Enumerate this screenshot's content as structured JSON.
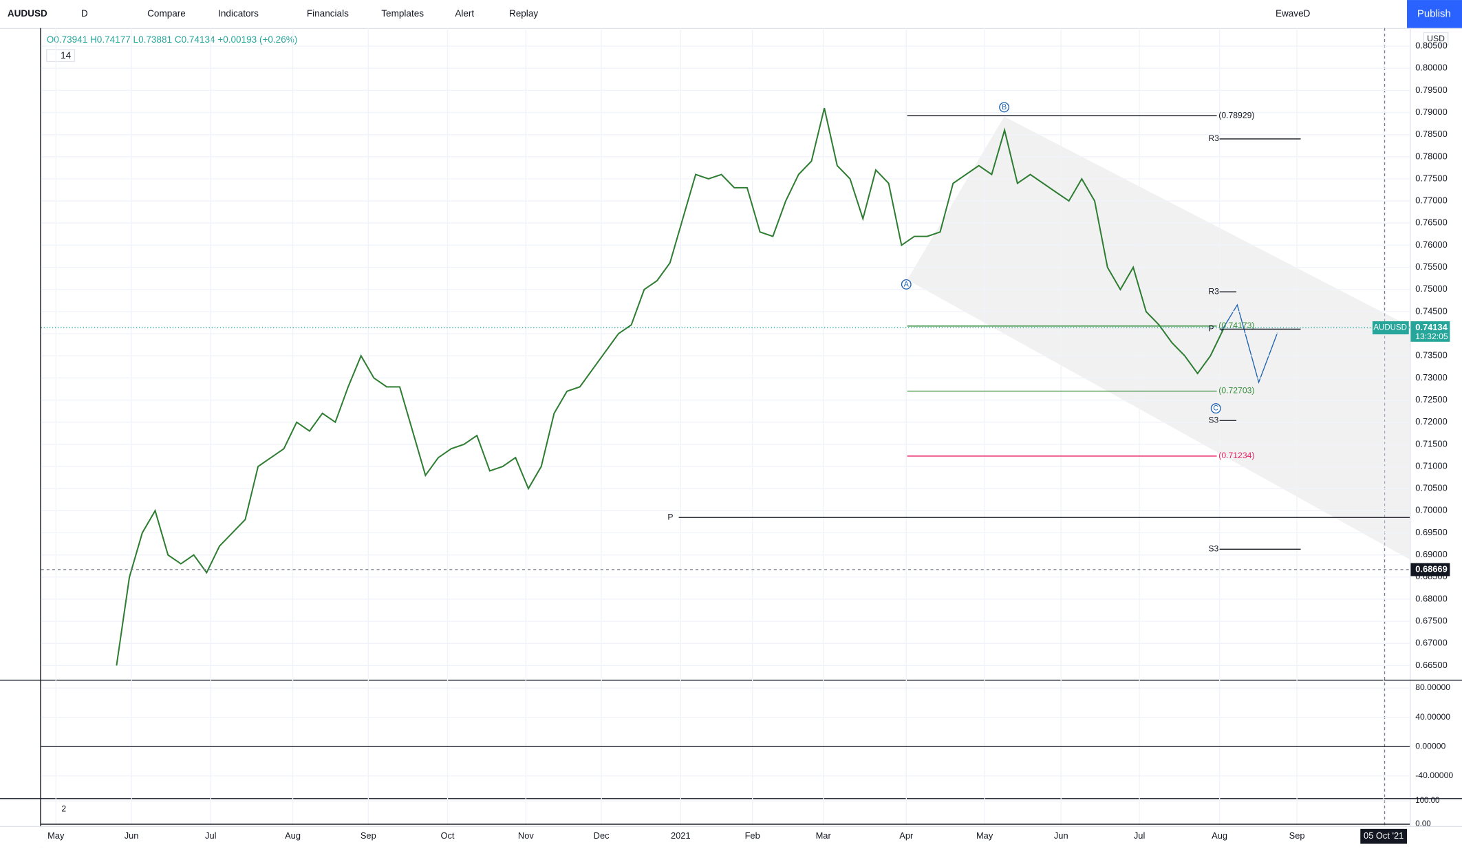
{
  "toolbar": {
    "symbol": "AUDUSD",
    "interval": "D",
    "buttons": [
      "Compare",
      "Indicators",
      "Financials",
      "Templates",
      "Alert",
      "Replay"
    ],
    "layout_name": "EwaveD",
    "publish": "Publish"
  },
  "legend": {
    "ohlc": "O0.73941 H0.74177 L0.73881 C0.74134 +0.00193 (+0.26%)",
    "length": "14"
  },
  "chart": {
    "currency": "USD",
    "ylim": [
      0.6618,
      0.8091
    ],
    "yticks": [
      {
        "value": 0.665,
        "label": "0.66500"
      },
      {
        "value": 0.67,
        "label": "0.67000"
      },
      {
        "value": 0.675,
        "label": "0.67500"
      },
      {
        "value": 0.68,
        "label": "0.68000"
      },
      {
        "value": 0.685,
        "label": "0.68500"
      },
      {
        "value": 0.69,
        "label": "0.69000"
      },
      {
        "value": 0.695,
        "label": "0.69500"
      },
      {
        "value": 0.7,
        "label": "0.70000"
      },
      {
        "value": 0.705,
        "label": "0.70500"
      },
      {
        "value": 0.71,
        "label": "0.71000"
      },
      {
        "value": 0.715,
        "label": "0.71500"
      },
      {
        "value": 0.72,
        "label": "0.72000"
      },
      {
        "value": 0.725,
        "label": "0.72500"
      },
      {
        "value": 0.73,
        "label": "0.73000"
      },
      {
        "value": 0.735,
        "label": "0.73500"
      },
      {
        "value": 0.74,
        "label": "0.74000"
      },
      {
        "value": 0.745,
        "label": "0.74500"
      },
      {
        "value": 0.75,
        "label": "0.75000"
      },
      {
        "value": 0.755,
        "label": "0.75500"
      },
      {
        "value": 0.76,
        "label": "0.76000"
      },
      {
        "value": 0.765,
        "label": "0.76500"
      },
      {
        "value": 0.77,
        "label": "0.77000"
      },
      {
        "value": 0.775,
        "label": "0.77500"
      },
      {
        "value": 0.78,
        "label": "0.78000"
      },
      {
        "value": 0.785,
        "label": "0.78500"
      },
      {
        "value": 0.79,
        "label": "0.79000"
      },
      {
        "value": 0.795,
        "label": "0.79500"
      },
      {
        "value": 0.8,
        "label": "0.80000"
      },
      {
        "value": 0.805,
        "label": "0.80500"
      }
    ],
    "time_labels": [
      "May",
      "Jun",
      "Jul",
      "Aug",
      "Sep",
      "Oct",
      "Nov",
      "Dec",
      "2021",
      "Feb",
      "Mar",
      "Apr",
      "May",
      "Jun",
      "Jul",
      "Aug",
      "Sep",
      "05 Oct '21"
    ],
    "closes": [
      0.665,
      0.685,
      0.695,
      0.7,
      0.69,
      0.688,
      0.69,
      0.686,
      0.692,
      0.695,
      0.698,
      0.71,
      0.712,
      0.714,
      0.72,
      0.718,
      0.722,
      0.72,
      0.728,
      0.735,
      0.73,
      0.728,
      0.728,
      0.718,
      0.708,
      0.712,
      0.714,
      0.715,
      0.717,
      0.709,
      0.71,
      0.712,
      0.705,
      0.71,
      0.722,
      0.727,
      0.728,
      0.732,
      0.736,
      0.74,
      0.742,
      0.75,
      0.752,
      0.756,
      0.766,
      0.776,
      0.775,
      0.776,
      0.773,
      0.773,
      0.763,
      0.762,
      0.77,
      0.776,
      0.779,
      0.791,
      0.778,
      0.775,
      0.766,
      0.777,
      0.774,
      0.76,
      0.762,
      0.762,
      0.763,
      0.774,
      0.776,
      0.778,
      0.776,
      0.786,
      0.774,
      0.776,
      0.774,
      0.772,
      0.77,
      0.775,
      0.77,
      0.755,
      0.75,
      0.755,
      0.745,
      0.742,
      0.738,
      0.735,
      0.731,
      0.735,
      0.741
    ],
    "color": "#2e7d32",
    "last_price": {
      "symbol": "AUDUSD",
      "price": 0.74134,
      "countdown": "13:32:05"
    },
    "crosshair_price": 0.68669,
    "levels": [
      {
        "value": 0.78929,
        "label": "(0.78929)",
        "color": "#131722"
      },
      {
        "value": 0.74173,
        "label": "(0.74173)",
        "color": "#388e3c"
      },
      {
        "value": 0.72703,
        "label": "(0.72703)",
        "color": "#388e3c"
      },
      {
        "value": 0.71234,
        "label": "(0.71234)",
        "color": "#e91e63"
      }
    ],
    "pivots": [
      "R3",
      "R3",
      "P",
      "S3",
      "P",
      "S3"
    ],
    "waves": [
      "A",
      "B",
      "C"
    ]
  },
  "oscillator": {
    "ylim": [
      -69,
      90
    ],
    "yticks": [
      {
        "value": 80,
        "label": "80.00000"
      },
      {
        "value": 40,
        "label": "40.00000"
      },
      {
        "value": 0,
        "label": "0.00000"
      },
      {
        "value": -40,
        "label": "-40.00000"
      }
    ]
  },
  "stochastic": {
    "length": "2",
    "ylim": [
      -8,
      108
    ],
    "yticks": [
      {
        "value": 100,
        "label": "100.00"
      },
      {
        "value": 0,
        "label": "0.00"
      }
    ]
  }
}
